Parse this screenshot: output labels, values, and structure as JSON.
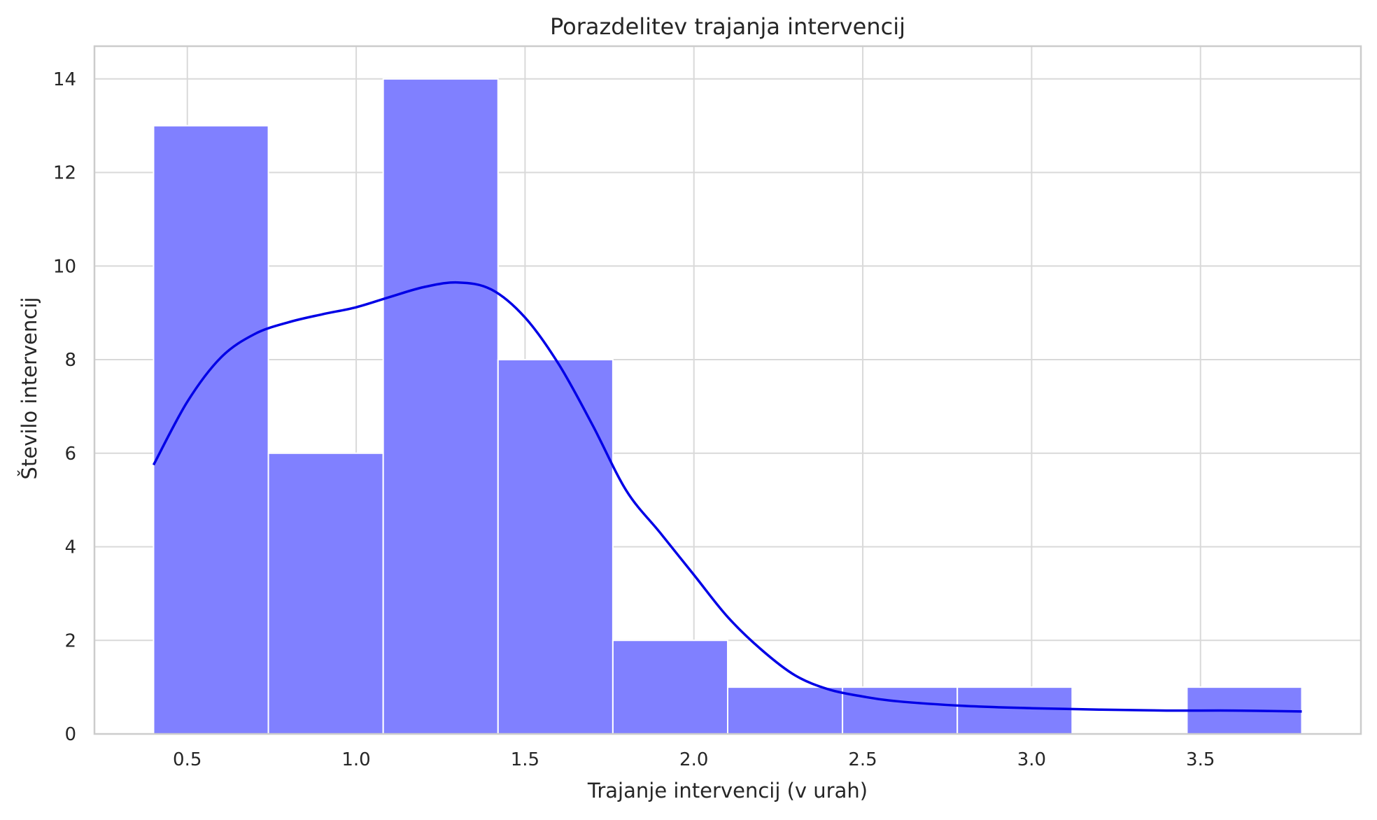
{
  "chart_data": {
    "type": "bar",
    "title": "Porazdelitev trajanja intervencij",
    "xlabel": "Trajanje intervencij (v urah)",
    "ylabel": "Število intervencij",
    "xlim": [
      0.225,
      3.975
    ],
    "ylim": [
      0,
      14.7
    ],
    "grid": true,
    "xticks": [
      0.5,
      1.0,
      1.5,
      2.0,
      2.5,
      3.0,
      3.5
    ],
    "xtick_labels": [
      "0.5",
      "1.0",
      "1.5",
      "2.0",
      "2.5",
      "3.0",
      "3.5"
    ],
    "yticks": [
      0,
      2,
      4,
      6,
      8,
      10,
      12,
      14
    ],
    "ytick_labels": [
      "0",
      "2",
      "4",
      "6",
      "8",
      "10",
      "12",
      "14"
    ],
    "bins": [
      {
        "x0": 0.4,
        "x1": 0.74,
        "count": 13
      },
      {
        "x0": 0.74,
        "x1": 1.08,
        "count": 6
      },
      {
        "x0": 1.08,
        "x1": 1.42,
        "count": 14
      },
      {
        "x0": 1.42,
        "x1": 1.76,
        "count": 8
      },
      {
        "x0": 1.76,
        "x1": 2.1,
        "count": 2
      },
      {
        "x0": 2.1,
        "x1": 2.44,
        "count": 1
      },
      {
        "x0": 2.44,
        "x1": 2.78,
        "count": 1
      },
      {
        "x0": 2.78,
        "x1": 3.12,
        "count": 1
      },
      {
        "x0": 3.12,
        "x1": 3.46,
        "count": 0
      },
      {
        "x0": 3.46,
        "x1": 3.8,
        "count": 1
      }
    ],
    "kde": {
      "x": [
        0.4,
        0.5,
        0.6,
        0.7,
        0.8,
        0.9,
        1.0,
        1.1,
        1.2,
        1.3,
        1.4,
        1.5,
        1.6,
        1.7,
        1.8,
        1.9,
        2.0,
        2.1,
        2.2,
        2.3,
        2.4,
        2.5,
        2.6,
        2.8,
        3.0,
        3.2,
        3.4,
        3.6,
        3.8
      ],
      "y": [
        5.75,
        7.1,
        8.05,
        8.55,
        8.8,
        8.97,
        9.12,
        9.34,
        9.55,
        9.65,
        9.5,
        8.9,
        7.9,
        6.6,
        5.2,
        4.3,
        3.4,
        2.5,
        1.8,
        1.25,
        0.95,
        0.8,
        0.7,
        0.6,
        0.55,
        0.52,
        0.5,
        0.5,
        0.48
      ]
    },
    "colors": {
      "bar_fill": "#8080ff",
      "bar_edge": "#ffffff",
      "kde_line": "#0000e6",
      "grid": "#d9d9d9",
      "spine": "#cccccc",
      "text": "#262626"
    }
  }
}
